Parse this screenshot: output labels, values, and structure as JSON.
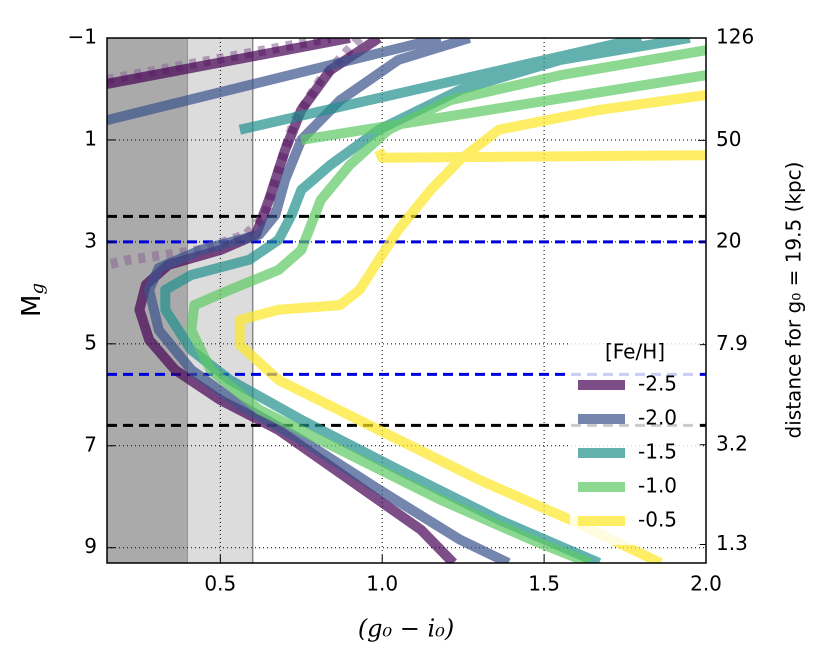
{
  "chart_data": {
    "type": "line",
    "xlabel": "(g₀ − i₀)",
    "ylabel": [
      "M",
      "g"
    ],
    "y2label": "distance for g₀ = 19.5 (kpc)",
    "xlim": [
      0.15,
      2.0
    ],
    "ylim": [
      9.3,
      -1
    ],
    "xticks": [
      0.5,
      {
        "value": 1.0,
        "label": "1.0"
      },
      1.5,
      {
        "value": 2.0,
        "label": "2.0"
      }
    ],
    "yticks": [
      {
        "value": -1,
        "label": "−1"
      },
      1,
      3,
      5,
      7,
      9
    ],
    "y2lim": [
      1.1,
      126
    ],
    "y2scale": "log",
    "y2ticks": [
      126,
      50,
      20,
      7.9,
      3.2,
      1.3
    ],
    "grid": true,
    "shaded_regions": [
      {
        "x": [
          0.15,
          0.4
        ],
        "color": "#aaaaaa"
      },
      {
        "x": [
          0.4,
          0.6
        ],
        "color": "#dcdcdc"
      }
    ],
    "hlines": [
      {
        "y": 2.5,
        "color": "#000000"
      },
      {
        "y": 6.6,
        "color": "#000000"
      },
      {
        "y": 3.0,
        "color": "#0000dd"
      },
      {
        "y": 5.6,
        "color": "#0000dd"
      }
    ],
    "legend_title": "[Fe/H]",
    "legend_loc": "lower right",
    "series": [
      {
        "color": "#8e6a9a",
        "dashed": true,
        "x": [
          0.15,
          0.84,
          null,
          0.93,
          0.81,
          0.73,
          0.68,
          0.64,
          0.58,
          0.44,
          0.22,
          0.15
        ],
        "values": [
          -0.18,
          -1,
          null,
          -1,
          -0.18,
          0.61,
          1.59,
          2.47,
          2.86,
          3.16,
          3.35,
          3.45
        ]
      },
      {
        "name": "-2.5",
        "color": "#440154",
        "x": [
          0.15,
          0.9,
          null,
          0.99,
          0.84,
          0.75,
          0.7,
          0.65,
          0.61,
          0.5,
          0.34,
          0.27,
          0.25,
          0.28,
          0.36,
          0.5,
          0.68,
          0.9,
          1.12,
          1.22
        ],
        "values": [
          -0.1,
          -1,
          null,
          -1,
          -0.37,
          0.41,
          1.2,
          2.18,
          2.86,
          3.16,
          3.45,
          3.84,
          4.33,
          4.92,
          5.51,
          6.1,
          6.69,
          7.67,
          8.65,
          9.3
        ]
      },
      {
        "name": "-2.0",
        "color": "#3b528b",
        "x": [
          0.15,
          1.18,
          null,
          1.27,
          1.05,
          0.87,
          0.75,
          0.7,
          0.67,
          0.62,
          0.44,
          0.31,
          0.28,
          0.31,
          0.41,
          0.56,
          0.75,
          0.99,
          1.24,
          1.39
        ],
        "values": [
          0.61,
          -1,
          null,
          -1,
          -0.57,
          0.22,
          1.0,
          1.78,
          2.47,
          2.86,
          3.16,
          3.51,
          3.94,
          4.73,
          5.51,
          6.2,
          6.88,
          7.86,
          8.84,
          9.3
        ]
      },
      {
        "name": "-1.5",
        "color": "#21908d",
        "x": [
          0.56,
          1.8,
          null,
          1.95,
          1.55,
          1.24,
          0.99,
          0.84,
          0.75,
          0.72,
          0.68,
          0.59,
          0.41,
          0.33,
          0.33,
          0.41,
          0.53,
          0.75,
          1.05,
          1.36,
          1.67
        ],
        "values": [
          0.8,
          -1,
          null,
          -1,
          -0.57,
          0.02,
          0.8,
          1.49,
          1.98,
          2.47,
          2.96,
          3.35,
          3.65,
          3.94,
          4.33,
          5.12,
          5.71,
          6.49,
          7.47,
          8.45,
          9.3
        ]
      },
      {
        "name": "-1.0",
        "color": "#5dc963",
        "x": [
          0.75,
          2.0,
          null,
          2.0,
          1.55,
          1.21,
          1.02,
          0.9,
          0.81,
          0.78,
          0.75,
          0.68,
          0.53,
          0.42,
          0.41,
          0.47,
          0.62,
          0.87,
          1.18,
          1.46,
          1.64
        ],
        "values": [
          1.0,
          -0.27,
          null,
          -0.76,
          -0.27,
          0.22,
          0.8,
          1.49,
          2.18,
          2.67,
          3.16,
          3.55,
          3.94,
          4.24,
          4.73,
          5.51,
          6.29,
          7.08,
          8.06,
          8.84,
          9.3
        ]
      },
      {
        "name": "-0.5",
        "color": "#fde725",
        "x": [
          0.99,
          1.0,
          2.0,
          null,
          2.0,
          1.67,
          1.36,
          1.24,
          1.15,
          1.05,
          0.99,
          0.93,
          0.87,
          0.68,
          0.56,
          0.56,
          0.68,
          0.99,
          1.3,
          1.58,
          1.86
        ],
        "values": [
          1.2,
          1.35,
          1.3,
          null,
          0.12,
          0.41,
          0.8,
          1.39,
          1.98,
          2.76,
          3.35,
          3.94,
          4.24,
          4.33,
          4.53,
          5.02,
          5.71,
          6.69,
          7.67,
          8.45,
          9.3
        ]
      }
    ]
  }
}
